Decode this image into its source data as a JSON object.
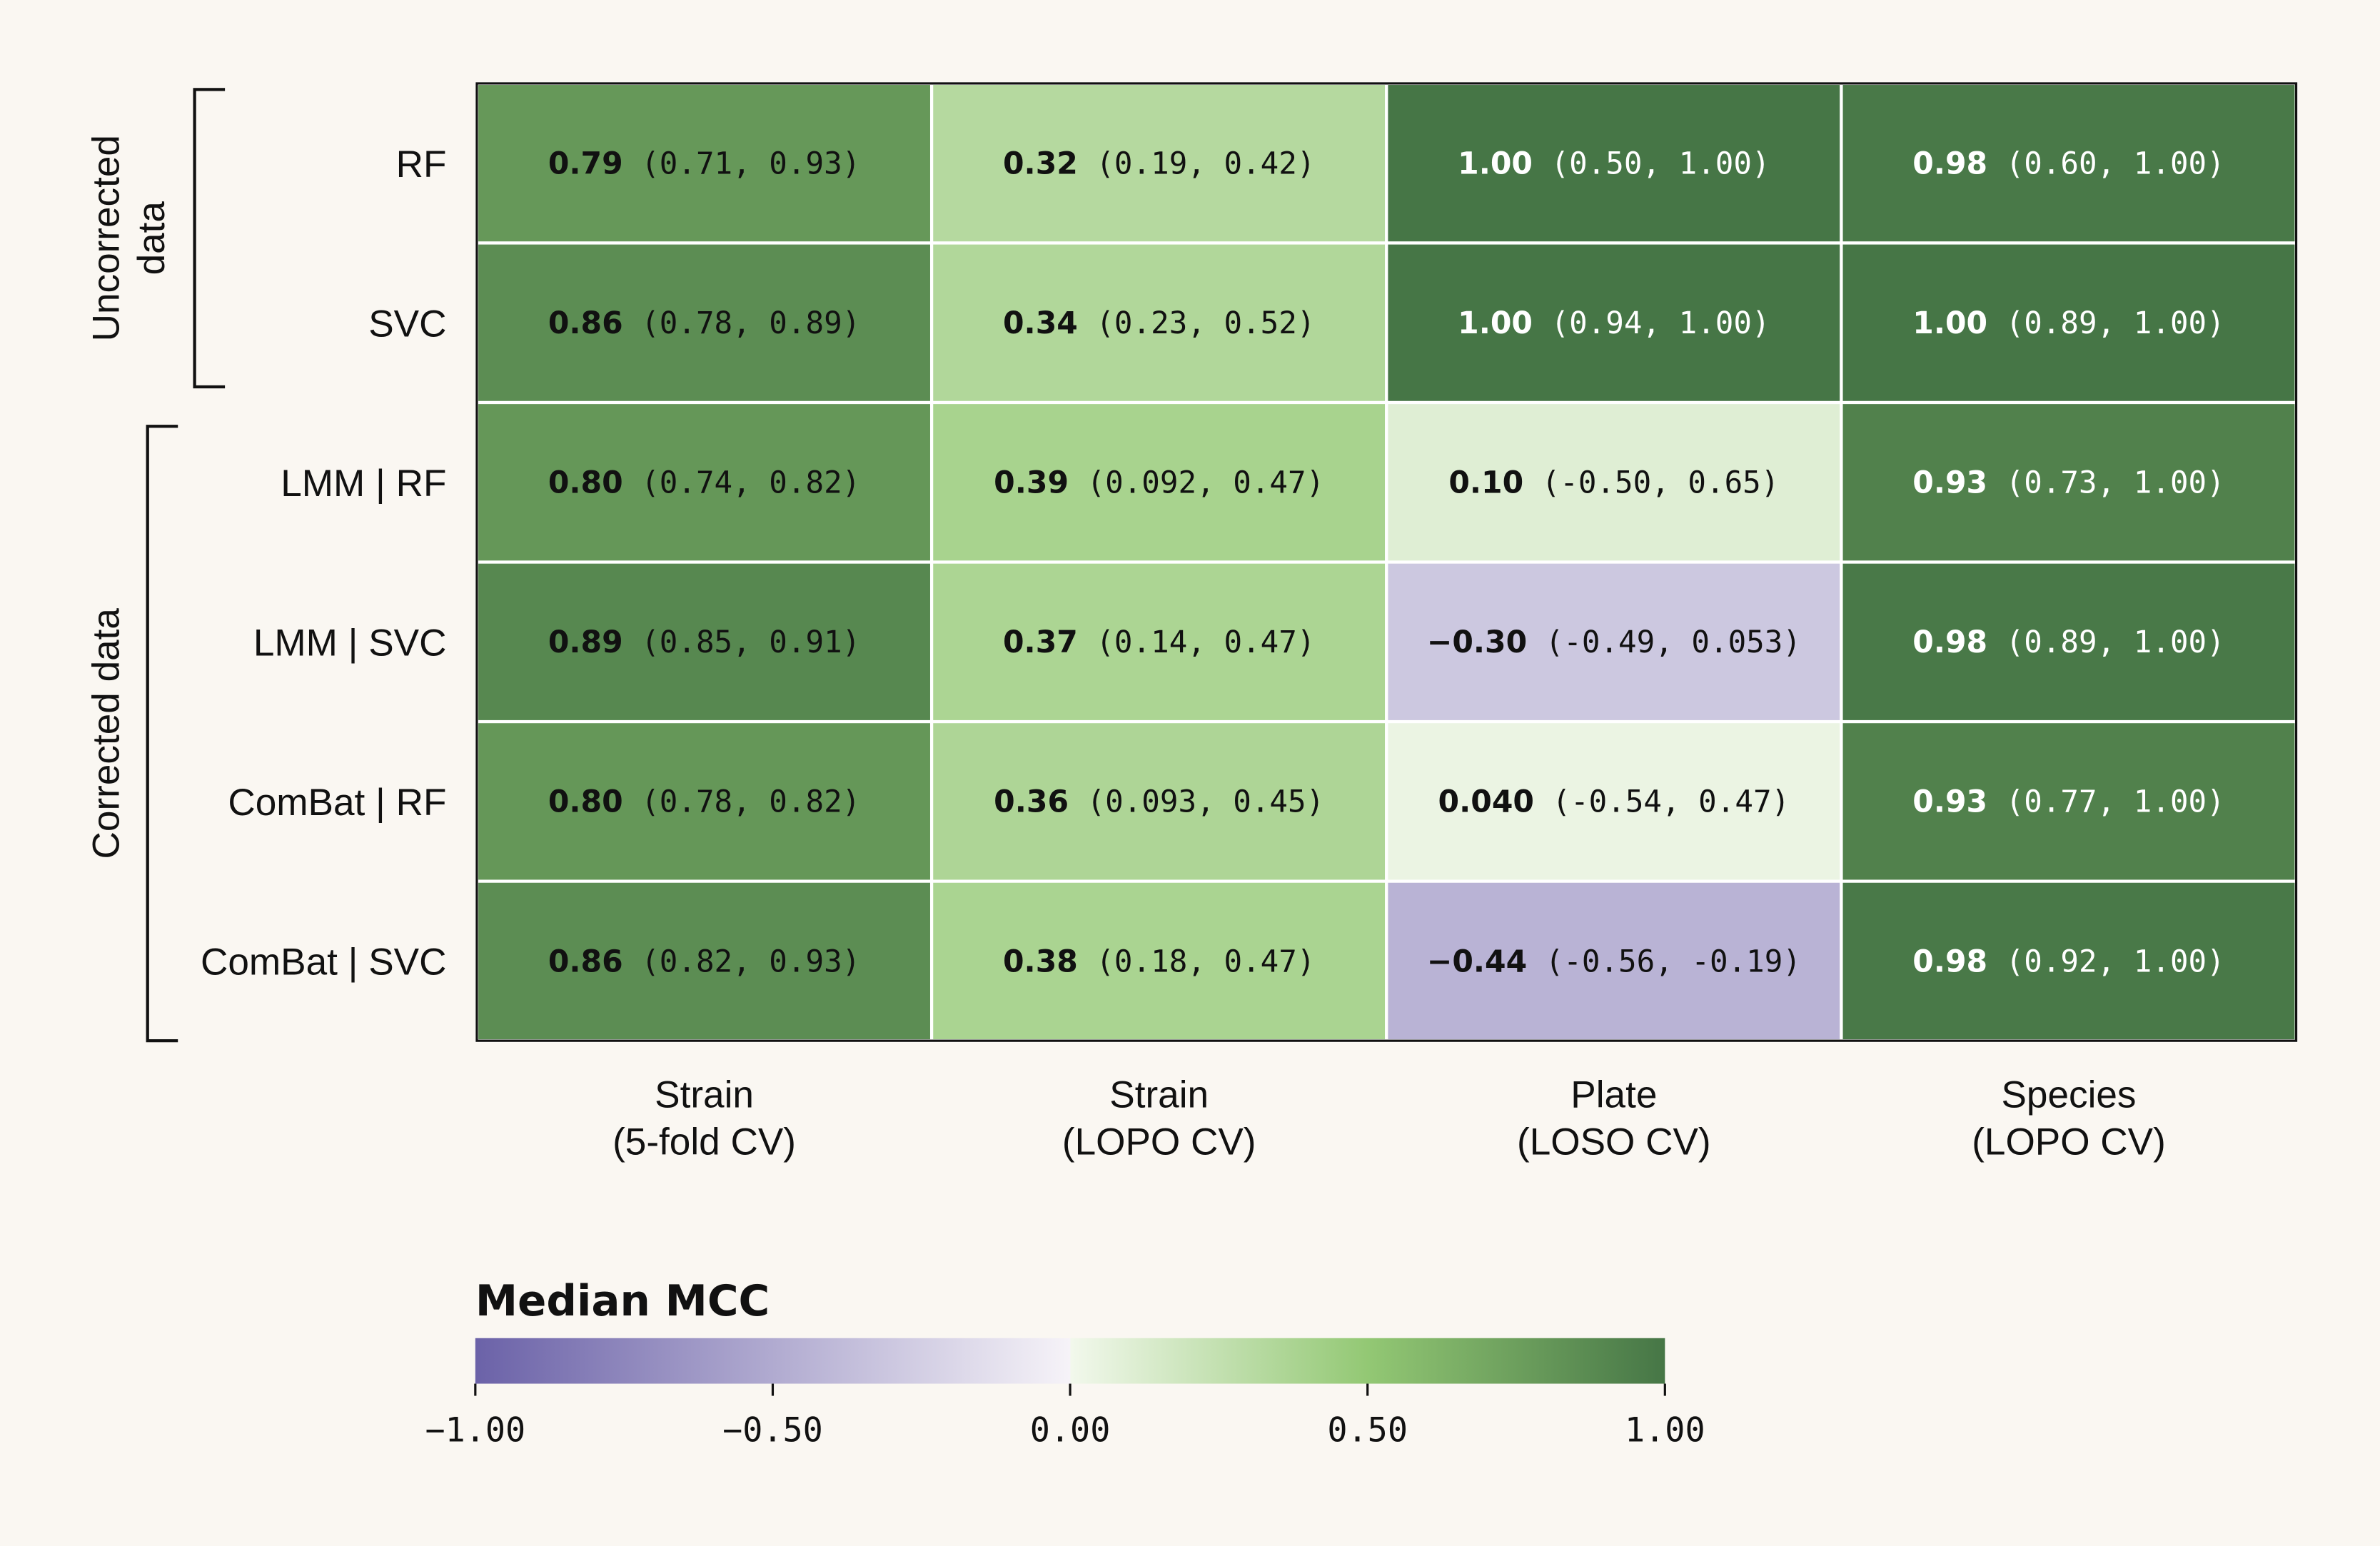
{
  "chart_data": {
    "type": "heatmap",
    "rows": [
      "RF",
      "SVC",
      "LMM | RF",
      "LMM | SVC",
      "ComBat | RF",
      "ComBat | SVC"
    ],
    "row_groups": [
      {
        "label": [
          "Uncorrected",
          "data"
        ],
        "rows": [
          0,
          1
        ]
      },
      {
        "label": [
          "Corrected data"
        ],
        "rows": [
          2,
          3,
          4,
          5
        ]
      }
    ],
    "columns": [
      [
        "Strain",
        "(5-fold CV)"
      ],
      [
        "Strain",
        "(LOPO CV)"
      ],
      [
        "Plate",
        "(LOSO CV)"
      ],
      [
        "Species",
        "(LOPO CV)"
      ]
    ],
    "medians": [
      [
        "0.79",
        "0.32",
        "1.00",
        "0.98"
      ],
      [
        "0.86",
        "0.34",
        "1.00",
        "1.00"
      ],
      [
        "0.80",
        "0.39",
        "0.10",
        "0.93"
      ],
      [
        "0.89",
        "0.37",
        "−0.30",
        "0.98"
      ],
      [
        "0.80",
        "0.36",
        "0.040",
        "0.93"
      ],
      [
        "0.86",
        "0.38",
        "−0.44",
        "0.98"
      ]
    ],
    "intervals": [
      [
        "(0.71, 0.93)",
        "(0.19, 0.42)",
        "(0.50, 1.00)",
        "(0.60, 1.00)"
      ],
      [
        "(0.78, 0.89)",
        "(0.23, 0.52)",
        "(0.94, 1.00)",
        "(0.89, 1.00)"
      ],
      [
        "(0.74, 0.82)",
        "(0.092, 0.47)",
        "(-0.50, 0.65)",
        "(0.73, 1.00)"
      ],
      [
        "(0.85, 0.91)",
        "(0.14, 0.47)",
        "(-0.49, 0.053)",
        "(0.89, 1.00)"
      ],
      [
        "(0.78, 0.82)",
        "(0.093, 0.45)",
        "(-0.54, 0.47)",
        "(0.77, 1.00)"
      ],
      [
        "(0.82, 0.93)",
        "(0.18, 0.47)",
        "(-0.56, -0.19)",
        "(0.92, 1.00)"
      ]
    ],
    "colorbar": {
      "title": "Median MCC",
      "range": [
        -1,
        1
      ],
      "ticks": [
        "−1.00",
        "−0.50",
        "0.00",
        "0.50",
        "1.00"
      ],
      "tick_values": [
        -1,
        -0.5,
        0,
        0.5,
        1
      ],
      "stops": [
        {
          "v": -1,
          "color": "#6b62a8"
        },
        {
          "v": 0,
          "color": "#f6f3f8"
        },
        {
          "v": 0.001,
          "color": "#f2f8ec"
        },
        {
          "v": 0.5,
          "color": "#93c874"
        },
        {
          "v": 1,
          "color": "#467646"
        }
      ]
    }
  }
}
